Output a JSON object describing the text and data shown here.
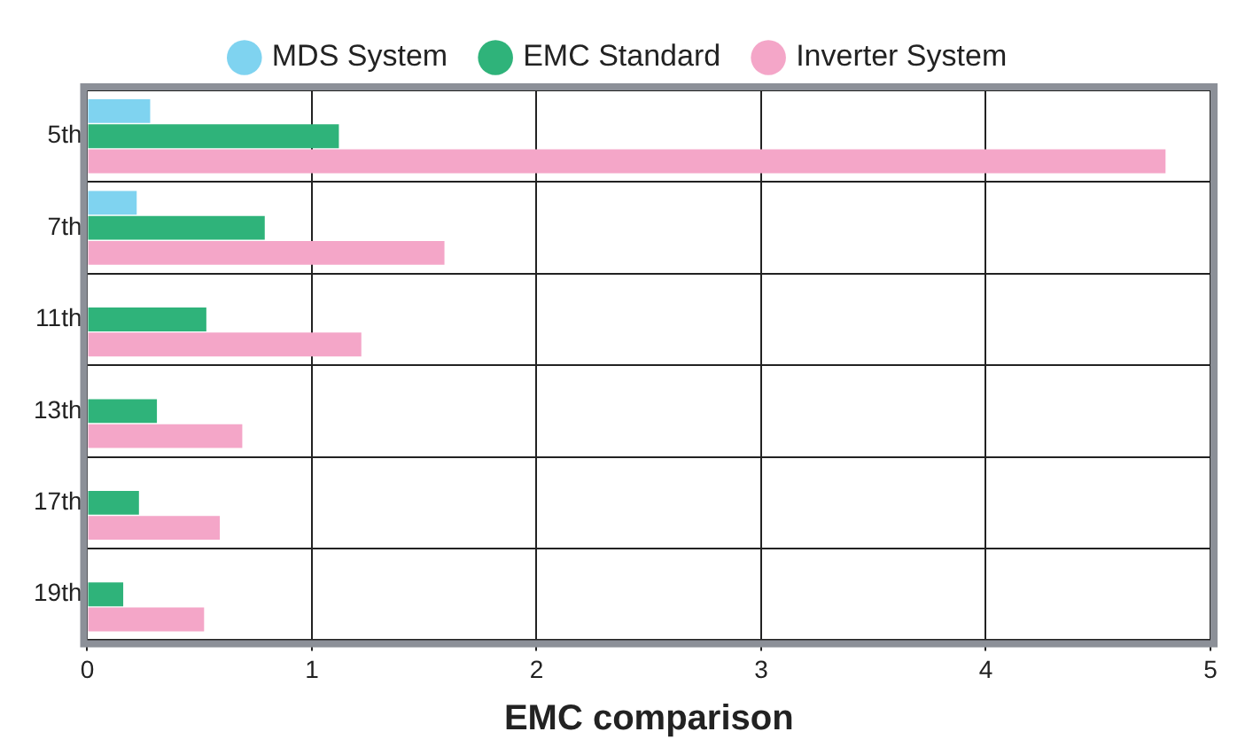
{
  "chart_data": {
    "type": "bar",
    "orientation": "horizontal",
    "xlabel": "EMC comparison",
    "categories": [
      "5th",
      "7th",
      "11th",
      "13th",
      "17th",
      "19th"
    ],
    "series": [
      {
        "name": "MDS System",
        "color": "#7fd3f0",
        "values": [
          0.28,
          0.22,
          null,
          null,
          null,
          null
        ]
      },
      {
        "name": "EMC Standard",
        "color": "#2fb37a",
        "values": [
          1.12,
          0.79,
          0.53,
          0.31,
          0.23,
          0.16
        ]
      },
      {
        "name": "Inverter System",
        "color": "#f4a6c8",
        "values": [
          4.8,
          1.59,
          1.22,
          0.69,
          0.59,
          0.52
        ]
      }
    ],
    "xlim": [
      0,
      5
    ],
    "xticks": [
      0,
      1,
      2,
      3,
      4,
      5
    ],
    "grid": true,
    "legend": "top"
  }
}
